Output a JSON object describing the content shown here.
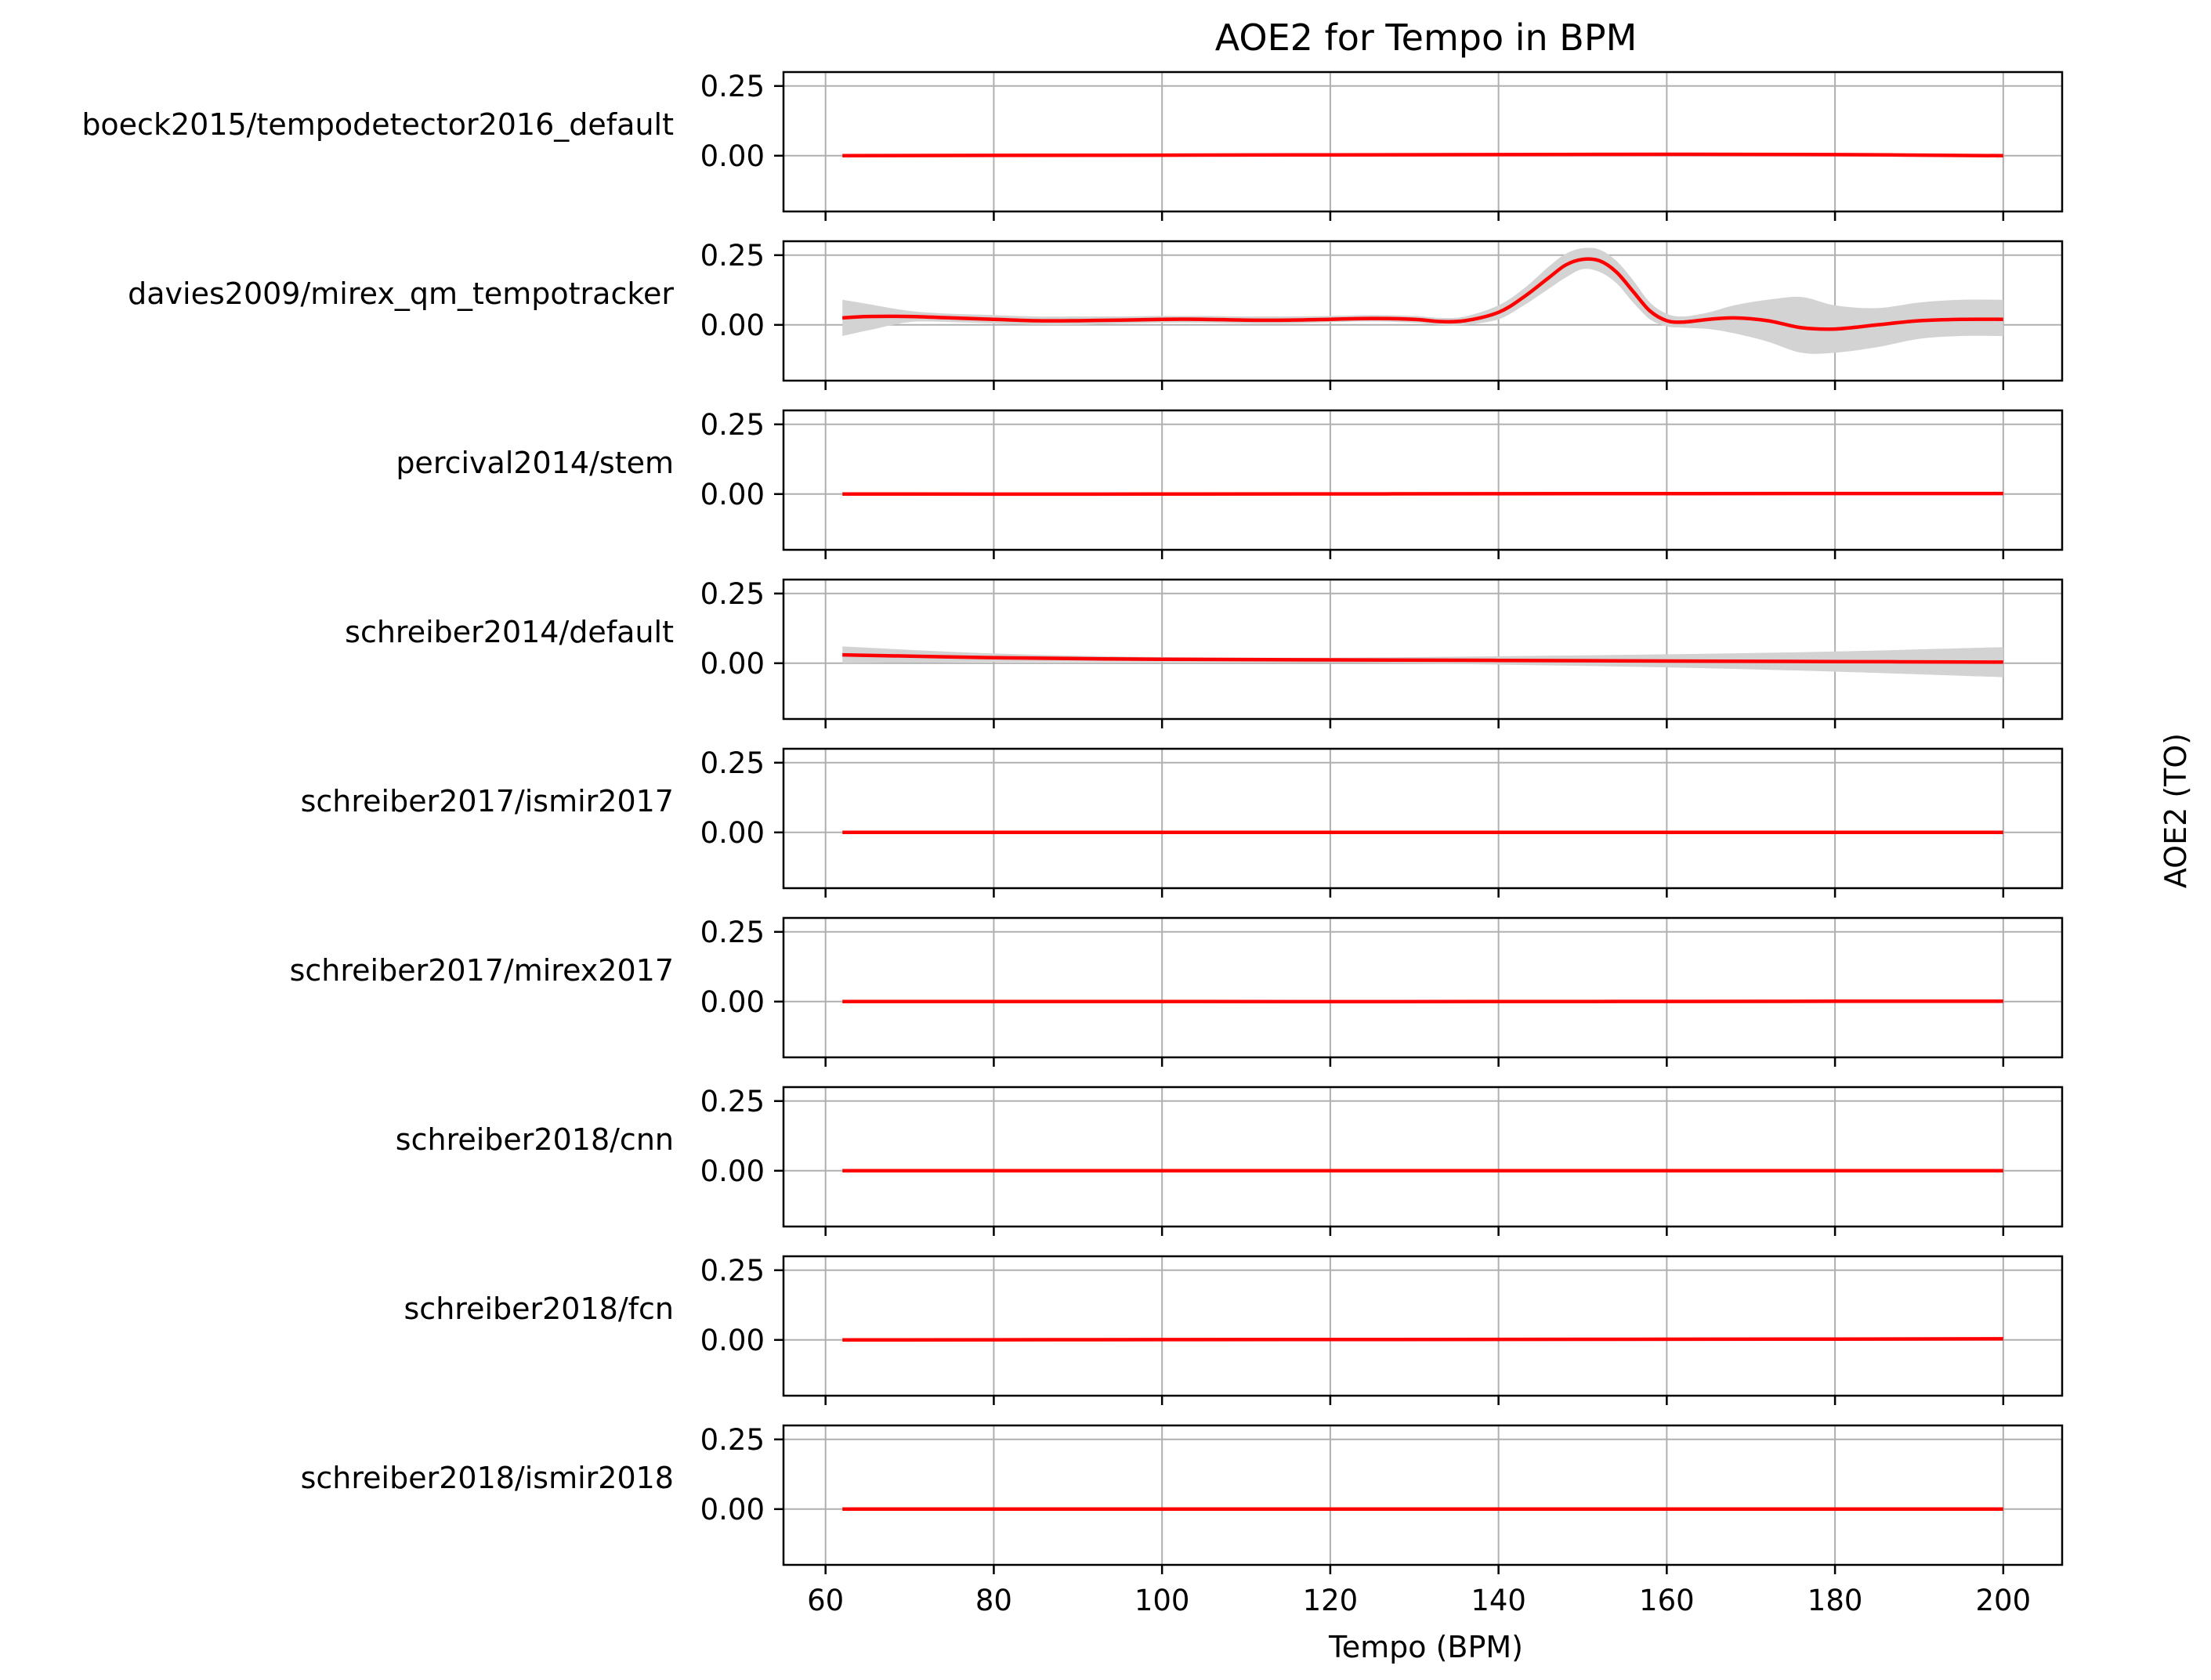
{
  "title": "AOE2 for Tempo in BPM",
  "xlabel": "Tempo (BPM)",
  "ylabel": "AOE2 (TO)",
  "colors": {
    "line": "#ff0000",
    "band": "#d3d3d3",
    "grid": "#b0b0b0",
    "axes": "#000000"
  },
  "chart_data": {
    "type": "line",
    "title": "AOE2 for Tempo in BPM",
    "xlabel": "Tempo (BPM)",
    "ylabel": "AOE2 (TO)",
    "xlim": [
      55,
      207
    ],
    "ylim": [
      -0.2,
      0.3
    ],
    "xticks": [
      60,
      80,
      100,
      120,
      140,
      160,
      180,
      200
    ],
    "xtick_labels": [
      "60",
      "80",
      "100",
      "120",
      "140",
      "160",
      "180",
      "200"
    ],
    "yticks": [
      0.0,
      0.25
    ],
    "ytick_labels": [
      "0.00",
      "0.25"
    ],
    "grid": true,
    "shared_x": true,
    "panels": [
      {
        "name": "boeck2015/tempodetector2016_default",
        "x": [
          62,
          80,
          100,
          120,
          140,
          160,
          180,
          200
        ],
        "y": [
          0.0,
          0.001,
          0.002,
          0.003,
          0.004,
          0.005,
          0.004,
          0.0
        ],
        "lower": [
          -0.002,
          -0.001,
          0.0,
          0.001,
          0.002,
          0.002,
          0.001,
          -0.003
        ],
        "upper": [
          0.002,
          0.003,
          0.004,
          0.005,
          0.006,
          0.008,
          0.007,
          0.003
        ]
      },
      {
        "name": "davies2009/mirex_qm_tempotracker",
        "x": [
          62,
          65,
          70,
          75,
          80,
          85,
          90,
          95,
          100,
          105,
          110,
          115,
          120,
          125,
          130,
          133,
          136,
          140,
          143,
          146,
          148,
          150,
          152,
          154,
          156,
          158,
          160,
          162,
          165,
          168,
          172,
          176,
          180,
          185,
          190,
          195,
          200
        ],
        "y": [
          0.025,
          0.03,
          0.03,
          0.025,
          0.02,
          0.015,
          0.015,
          0.017,
          0.02,
          0.02,
          0.017,
          0.017,
          0.02,
          0.023,
          0.02,
          0.012,
          0.015,
          0.045,
          0.1,
          0.17,
          0.215,
          0.235,
          0.23,
          0.19,
          0.12,
          0.05,
          0.015,
          0.01,
          0.02,
          0.025,
          0.015,
          -0.01,
          -0.015,
          0.0,
          0.015,
          0.02,
          0.02
        ],
        "lower": [
          -0.04,
          -0.02,
          0.01,
          0.01,
          0.005,
          0.0,
          0.0,
          0.005,
          0.008,
          0.008,
          0.005,
          0.005,
          0.01,
          0.012,
          0.008,
          0.0,
          0.0,
          0.02,
          0.07,
          0.13,
          0.17,
          0.2,
          0.19,
          0.15,
          0.08,
          0.02,
          -0.005,
          -0.01,
          -0.015,
          -0.03,
          -0.06,
          -0.1,
          -0.1,
          -0.08,
          -0.05,
          -0.04,
          -0.04
        ],
        "upper": [
          0.09,
          0.075,
          0.05,
          0.04,
          0.035,
          0.03,
          0.03,
          0.03,
          0.032,
          0.032,
          0.03,
          0.03,
          0.032,
          0.035,
          0.032,
          0.025,
          0.03,
          0.07,
          0.13,
          0.21,
          0.255,
          0.275,
          0.27,
          0.23,
          0.16,
          0.08,
          0.04,
          0.03,
          0.045,
          0.07,
          0.09,
          0.1,
          0.07,
          0.06,
          0.08,
          0.09,
          0.09
        ]
      },
      {
        "name": "percival2014/stem",
        "x": [
          62,
          100,
          140,
          180,
          200
        ],
        "y": [
          0.0,
          0.0,
          0.001,
          0.002,
          0.002
        ],
        "lower": [
          -0.001,
          -0.001,
          0.0,
          0.0,
          0.0
        ],
        "upper": [
          0.001,
          0.001,
          0.002,
          0.004,
          0.004
        ]
      },
      {
        "name": "schreiber2014/default",
        "x": [
          62,
          80,
          100,
          120,
          140,
          160,
          180,
          200
        ],
        "y": [
          0.03,
          0.02,
          0.014,
          0.012,
          0.01,
          0.008,
          0.006,
          0.004
        ],
        "lower": [
          0.0,
          0.005,
          0.005,
          0.003,
          -0.005,
          -0.015,
          -0.03,
          -0.05
        ],
        "upper": [
          0.06,
          0.035,
          0.022,
          0.02,
          0.025,
          0.032,
          0.042,
          0.058
        ]
      },
      {
        "name": "schreiber2017/ismir2017",
        "x": [
          62,
          100,
          140,
          180,
          200
        ],
        "y": [
          0.0,
          0.0,
          0.0,
          0.0,
          0.0
        ],
        "lower": [
          -0.001,
          -0.001,
          -0.001,
          -0.001,
          -0.001
        ],
        "upper": [
          0.001,
          0.001,
          0.001,
          0.001,
          0.001
        ]
      },
      {
        "name": "schreiber2017/mirex2017",
        "x": [
          62,
          100,
          140,
          180,
          200
        ],
        "y": [
          0.0,
          0.0,
          0.0,
          0.001,
          0.001
        ],
        "lower": [
          -0.001,
          -0.001,
          -0.001,
          0.0,
          0.0
        ],
        "upper": [
          0.001,
          0.001,
          0.001,
          0.002,
          0.002
        ]
      },
      {
        "name": "schreiber2018/cnn",
        "x": [
          62,
          100,
          140,
          180,
          200
        ],
        "y": [
          0.0,
          0.0,
          0.0,
          0.0,
          0.0
        ],
        "lower": [
          -0.001,
          -0.001,
          -0.001,
          -0.001,
          -0.001
        ],
        "upper": [
          0.001,
          0.001,
          0.001,
          0.001,
          0.001
        ]
      },
      {
        "name": "schreiber2018/fcn",
        "x": [
          62,
          100,
          140,
          180,
          200
        ],
        "y": [
          0.0,
          0.001,
          0.002,
          0.003,
          0.004
        ],
        "lower": [
          -0.001,
          0.0,
          0.001,
          0.001,
          0.002
        ],
        "upper": [
          0.001,
          0.002,
          0.003,
          0.005,
          0.006
        ]
      },
      {
        "name": "schreiber2018/ismir2018",
        "x": [
          62,
          100,
          140,
          180,
          200
        ],
        "y": [
          0.0,
          0.0,
          0.0,
          0.0,
          0.0
        ],
        "lower": [
          -0.001,
          -0.001,
          -0.001,
          -0.001,
          -0.001
        ],
        "upper": [
          0.001,
          0.001,
          0.001,
          0.001,
          0.001
        ]
      }
    ]
  }
}
